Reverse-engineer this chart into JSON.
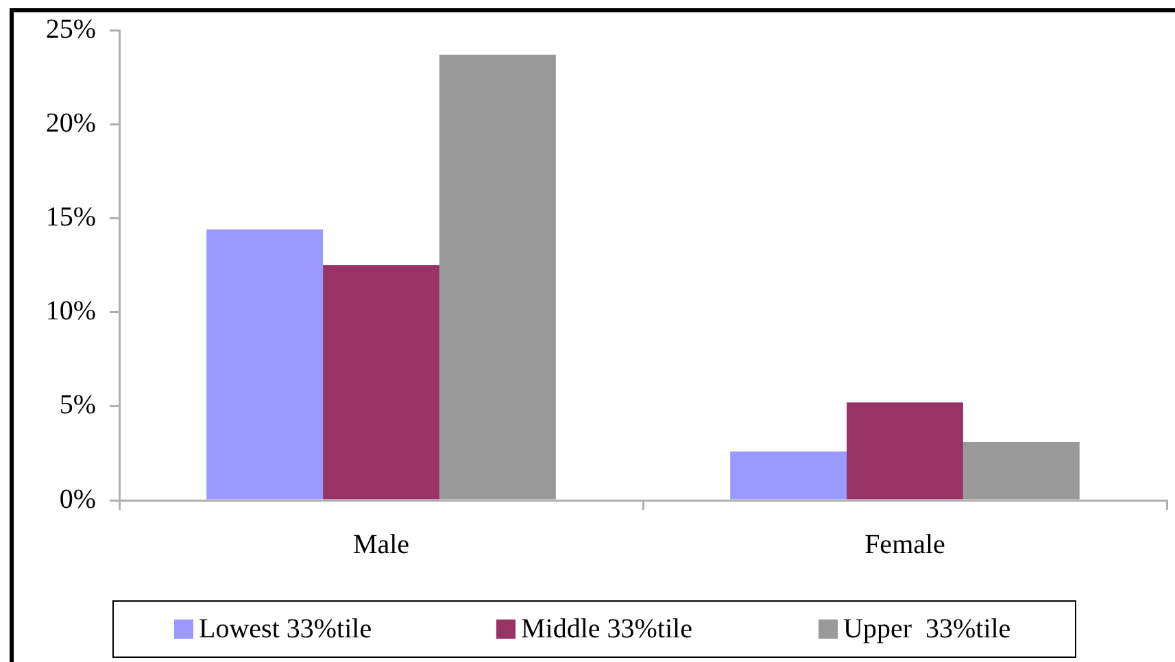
{
  "chart_data": {
    "type": "bar",
    "categories": [
      "Male",
      "Female"
    ],
    "series": [
      {
        "name": "Lowest 33%tile",
        "color": "#9999ff",
        "values": [
          14.4,
          2.6
        ]
      },
      {
        "name": "Middle 33%tile",
        "color": "#993366",
        "values": [
          12.5,
          5.2
        ]
      },
      {
        "name": "Upper  33%tile",
        "color": "#999999",
        "values": [
          23.7,
          3.1
        ]
      }
    ],
    "ylim": [
      0,
      25
    ],
    "yticks": [
      {
        "value": 0,
        "label": "0%"
      },
      {
        "value": 5,
        "label": "5%"
      },
      {
        "value": 10,
        "label": "10%"
      },
      {
        "value": 15,
        "label": "15%"
      },
      {
        "value": 20,
        "label": "20%"
      },
      {
        "value": 25,
        "label": "25%"
      }
    ],
    "grid": false,
    "legend": "bottom"
  }
}
